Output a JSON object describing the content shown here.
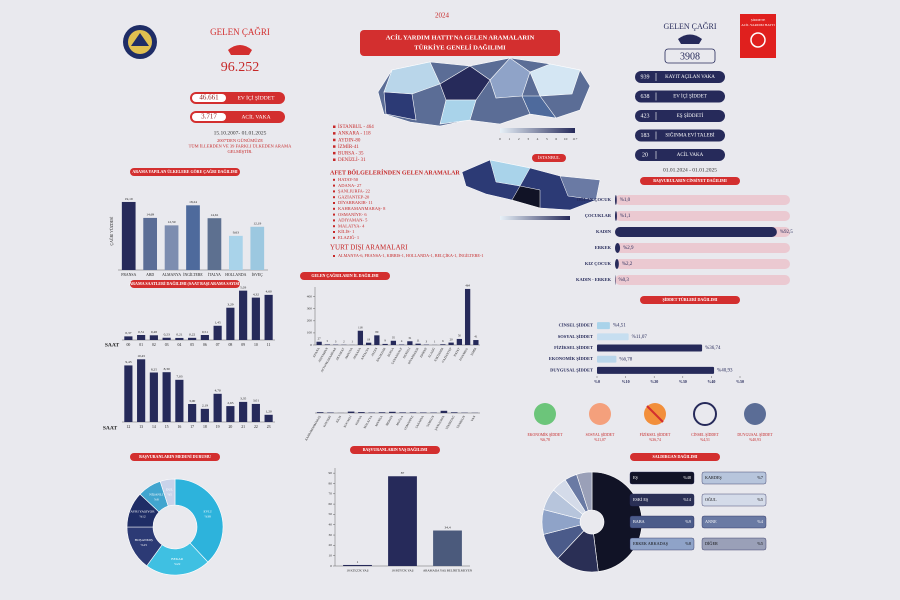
{
  "left": {
    "call_title": "GELEN ÇAĞRI",
    "call_total": "96.252",
    "stats": [
      {
        "value": "46.661",
        "label": "EV İÇİ ŞİDDET"
      },
      {
        "value": "3.717",
        "label": "ACİL VAKA"
      }
    ],
    "period": "15.10.2007- 01.01.2025",
    "note_lines": [
      "2007'DEN GÜNÜMÜZE",
      "TÜM İLLERDEN VE 39 FARKLI ÜLKEDEN ARAMA",
      "GELMİŞTİR."
    ]
  },
  "map": {
    "year": "2024",
    "title_lines": [
      "ACİL YARDIM HATTI'NA GELEN ARAMALARIN",
      "TÜRKİYE GENELİ DAĞILIMI"
    ],
    "legend": [
      "0",
      "1",
      "2",
      "3",
      "4",
      "5",
      "6",
      "10",
      "11+"
    ],
    "inset_label": "İSTANBUL",
    "top_cities": [
      "İSTANBUL - 464",
      "ANKARA - 118",
      "AYDIN-80",
      "İZMİR-41",
      "BURSA - 35",
      "DENİZLİ- 31"
    ],
    "disaster_title": "AFET BÖLGELERİNDEN GELEN ARAMALAR",
    "disaster_cities": [
      "HATAY-50",
      "ADANA- 27",
      "ŞANLIURFA- 22",
      "GAZİANTEP-20",
      "DİYARBAKIR- 11",
      "KAHRAMANMARAŞ- 8",
      "OSMANİYE- 6",
      "ADIYAMAN- 5",
      "MALATYA- 4",
      "KİLİS- 1",
      "ELAZIĞ- 1"
    ],
    "abroad_title": "YURT DIŞI ARAMALARI",
    "abroad_text": "ALMANYA-6, FRANSA-1, KIBRIS-1, HOLLANDA-1, BELÇİKA-1, İNGİLTERE-1"
  },
  "right": {
    "call_title": "GELEN ÇAĞRI",
    "call_total": "3908",
    "logo_lines": [
      "ŞİDDETE",
      "ACİL YARDIM HATTI"
    ],
    "stats": [
      {
        "value": "939",
        "label": "KAYIT AÇILAN VAKA"
      },
      {
        "value": "638",
        "label": "EV İÇİ ŞİDDET"
      },
      {
        "value": "423",
        "label": "EŞ ŞİDDETİ"
      },
      {
        "value": "183",
        "label": "SIĞINMA EVİ TALEBİ"
      },
      {
        "value": "20",
        "label": "ACİL VAKA"
      }
    ],
    "period": "01.01.2024 - 01.01.2025"
  },
  "icons": [
    {
      "label": "EKONOMİK ŞİDDET",
      "value": "%6,78"
    },
    {
      "label": "SOSYAL ŞİDDET",
      "value": "%11,07"
    },
    {
      "label": "FİZİKSEL ŞİDDET",
      "value": "%36,74"
    },
    {
      "label": "CİNSEL ŞİDDET",
      "value": "%4,51"
    },
    {
      "label": "DUYGUSAL ŞİDDET",
      "value": "%40,93"
    }
  ],
  "charts": {
    "country": {
      "type": "bar",
      "title": "ARAMA YAPILAN ÜLKELERE GÖRE ÇAĞRI DAĞILIMI",
      "ylabel": "ÇAĞRI YÜZDESİ",
      "categories": [
        "FRANSA",
        "ABD",
        "ALMANYA",
        "İNGİLTERE",
        "İTALYA",
        "HOLLANDA",
        "İSVEÇ"
      ],
      "values": [
        19.19,
        14.69,
        12.59,
        18.24,
        14.61,
        9.63,
        12.19
      ],
      "value_labels": [
        "19,19",
        "14,69",
        "12,59",
        "18,24",
        "14,61",
        "9,63",
        "12,19"
      ],
      "colors": [
        "#262a5a",
        "#5b6d96",
        "#7d8db0",
        "#4e6a9c",
        "#5d7090",
        "#a9d3ea",
        "#9cc8e0"
      ],
      "ylim": [
        0,
        22
      ]
    },
    "hours_am": {
      "type": "bar",
      "title": "ARAMA SAATLERİ DAĞILIMI (SAAT BAŞI ARAMA SAYISI)",
      "xlabel": "SAAT",
      "categories": [
        "00",
        "01",
        "02",
        "03",
        "04",
        "05",
        "06",
        "07",
        "08",
        "09",
        "10",
        "11"
      ],
      "values": [
        0.37,
        0.51,
        0.48,
        0.23,
        0.21,
        0.22,
        0.51,
        1.45,
        3.29,
        5.03,
        4.32,
        4.6
      ],
      "value_labels": [
        "0,37",
        "0,51",
        "0,48",
        "0,23",
        "0,21",
        "0,22",
        "0,51",
        "1,45",
        "3,29",
        "5,03",
        "4,32",
        "4,60"
      ],
      "color": "#262a5a",
      "ylim": [
        0,
        5.3
      ]
    },
    "hours_pm": {
      "type": "bar",
      "xlabel": "SAAT",
      "categories": [
        "12",
        "13",
        "14",
        "15",
        "16",
        "17",
        "18",
        "19",
        "20",
        "21",
        "22",
        "23"
      ],
      "values": [
        9.43,
        10.45,
        8.25,
        8.3,
        7.03,
        3.0,
        2.19,
        4.7,
        2.65,
        3.35,
        3.01,
        1.2
      ],
      "value_labels": [
        "9,43",
        "10,45",
        "8,25",
        "8,30",
        "7,03",
        "3,00",
        "2,19",
        "4,70",
        "2,65",
        "3,35",
        "3,01",
        "1,20"
      ],
      "color": "#262a5a",
      "ylim": [
        0,
        11
      ]
    },
    "cities": {
      "type": "bar",
      "title": "GELEN ÇAĞRILARIN İL DAĞILIMI",
      "categories": [
        "ADANA",
        "ADIYAMAN",
        "AFYONKARAHİSAR",
        "AKSARAY",
        "AMASYA",
        "ANKARA",
        "ANTALYA",
        "AYDIN",
        "BALIKESİR",
        "BURSA",
        "ÇANAKKALE",
        "DENİZLİ",
        "DİYARBAKIR",
        "EDİRNE",
        "ELAZIĞ",
        "ESKİŞEHİR",
        "GAZİANTEP",
        "HATAY",
        "İSTANBUL",
        "İZMİR"
      ],
      "values": [
        27,
        5,
        3,
        2,
        1,
        118,
        19,
        80,
        9,
        35,
        4,
        31,
        11,
        3,
        1,
        6,
        20,
        50,
        464,
        41
      ],
      "color": "#262a5a",
      "ylim": [
        0,
        480
      ],
      "yticks": [
        0,
        100,
        200,
        300,
        400
      ]
    },
    "cities_2": {
      "type": "bar",
      "categories": [
        "KAHRAMANMARAŞ",
        "KAYSERİ",
        "KİLİS",
        "KOCAELİ",
        "KONYA",
        "MALATYA",
        "MANİSA",
        "MERSİN",
        "MUĞLA",
        "OSMANİYE",
        "SAKARYA",
        "SAMSUN",
        "ŞANLIURFA",
        "TEKİRDAĞ",
        "TRABZON",
        "VAN"
      ],
      "values": [
        8,
        5,
        1,
        14,
        9,
        4,
        7,
        12,
        6,
        6,
        5,
        4,
        22,
        7,
        3,
        2
      ],
      "color": "#262a5a",
      "ylim": [
        0,
        160
      ]
    },
    "gender": {
      "type": "barh",
      "title": "BAŞVURULARIN CİNSİYET DAĞILIMI",
      "categories": [
        "OĞLAN ÇOCUK",
        "ÇOCUKLAR",
        "KADIN",
        "ERKEK",
        "KIZ ÇOCUK",
        "KADIN - ERKEK"
      ],
      "values": [
        1.0,
        1.1,
        92.5,
        2.9,
        2.2,
        0.3
      ],
      "value_labels": [
        "%1,0",
        "%1,1",
        "%92,5",
        "%2,9",
        "%2,2",
        "%0,3"
      ],
      "color": "#262a5a",
      "track_color": "#ebc9d1",
      "xlim": [
        0,
        100
      ]
    },
    "violence": {
      "type": "barh",
      "title": "ŞİDDET TÜRLERİ DAĞILIMI",
      "categories": [
        "CİNSEL ŞİDDET",
        "SOSYAL ŞİDDET",
        "FİZİKSEL ŞİDDET",
        "EKONOMİK ŞİDDET",
        "DUYGUSAL ŞİDDET"
      ],
      "values": [
        4.51,
        11.07,
        36.74,
        6.78,
        40.93
      ],
      "value_labels": [
        "%4,51",
        "%11,07",
        "%36,74",
        "%6,78",
        "%40,93"
      ],
      "colors": [
        "#a9d3ea",
        "#c6def0",
        "#262a5a",
        "#b9d6ea",
        "#262a5a"
      ],
      "xlim": [
        0,
        50
      ],
      "xticks": [
        {
          "value": 0,
          "label": "%0"
        },
        {
          "value": 10,
          "label": "%10"
        },
        {
          "value": 20,
          "label": "%20"
        },
        {
          "value": 30,
          "label": "%30"
        },
        {
          "value": 40,
          "label": "%40"
        },
        {
          "value": 50,
          "label": "%50"
        }
      ]
    },
    "marital": {
      "type": "donut",
      "title": "BAŞVURANLARIN MEDENİ DURUMU",
      "categories": [
        "EVLİ",
        "BEKAR",
        "BOŞANMIŞ",
        "AYRI YAŞIYOR",
        "NİŞANLI",
        "DUL"
      ],
      "values": [
        38,
        22,
        15,
        12,
        8,
        5
      ],
      "value_labels": [
        "%38",
        "%22",
        "%15",
        "%12",
        "%8",
        "%5"
      ],
      "colors": [
        "#2db3dc",
        "#3fc0e2",
        "#2c3a75",
        "#1f2d66",
        "#41a5cf",
        "#c9d3ea"
      ]
    },
    "age_groups": {
      "type": "bar",
      "title": "BAŞVURANLARIN YAŞ DAĞILIMI",
      "categories": [
        "18 KÜÇÜK YAŞ",
        "18 BÜYÜK YAŞ",
        "ARAMADA YAŞ BELİRTİLMEYEN"
      ],
      "values": [
        1,
        87,
        34.4
      ],
      "value_labels": [
        "1",
        "87",
        "34,4"
      ],
      "colors": [
        "#262a5a",
        "#262a5a",
        "#4b5a7c"
      ],
      "ylim": [
        0,
        95
      ],
      "yticks": [
        0,
        10,
        20,
        30,
        40,
        50,
        60,
        70,
        80,
        90
      ]
    },
    "aggressor": {
      "type": "donut",
      "title": "SALDIRGAN DAĞILIMI",
      "categories": [
        "EŞ",
        "ESKİ EŞ",
        "BABA",
        "ERKEK ARKADAŞ",
        "KARDEŞ",
        "OĞUL",
        "ANNE",
        "DİĞER"
      ],
      "values": [
        48,
        14,
        9,
        8,
        7,
        5,
        4,
        5
      ],
      "value_labels": [
        "%48",
        "%14",
        "%9",
        "%8",
        "%7",
        "%5",
        "%4",
        "%5"
      ],
      "colors": [
        "#111326",
        "#2a2f55",
        "#4b5b8a",
        "#8fa3c8",
        "#b7c5dc",
        "#d4dbe9",
        "#6a7aa4",
        "#9aa0b8"
      ]
    }
  }
}
